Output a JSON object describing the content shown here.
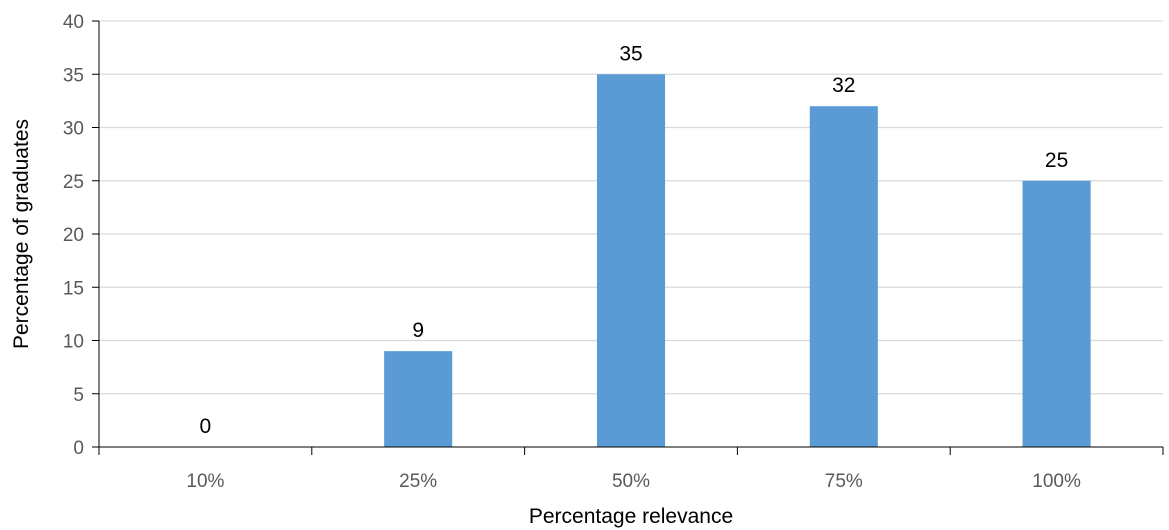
{
  "chart_data": {
    "type": "bar",
    "title": "",
    "xlabel": "Percentage relevance",
    "ylabel": "Percentage of graduates",
    "categories": [
      "10%",
      "25%",
      "50%",
      "75%",
      "100%"
    ],
    "values": [
      0,
      9,
      35,
      32,
      25
    ],
    "data_labels": [
      "0",
      "9",
      "35",
      "32",
      "25"
    ],
    "ylim": [
      0,
      40
    ],
    "yticks": [
      0,
      5,
      10,
      15,
      20,
      25,
      30,
      35,
      40
    ],
    "ytick_labels": [
      "0",
      "5",
      "10",
      "15",
      "20",
      "25",
      "30",
      "35",
      "40"
    ],
    "grid": "horizontal",
    "legend": "none",
    "bar_color": "#5B9BD5",
    "grid_color": "#D9D9D9",
    "axis_color": "#000000"
  }
}
